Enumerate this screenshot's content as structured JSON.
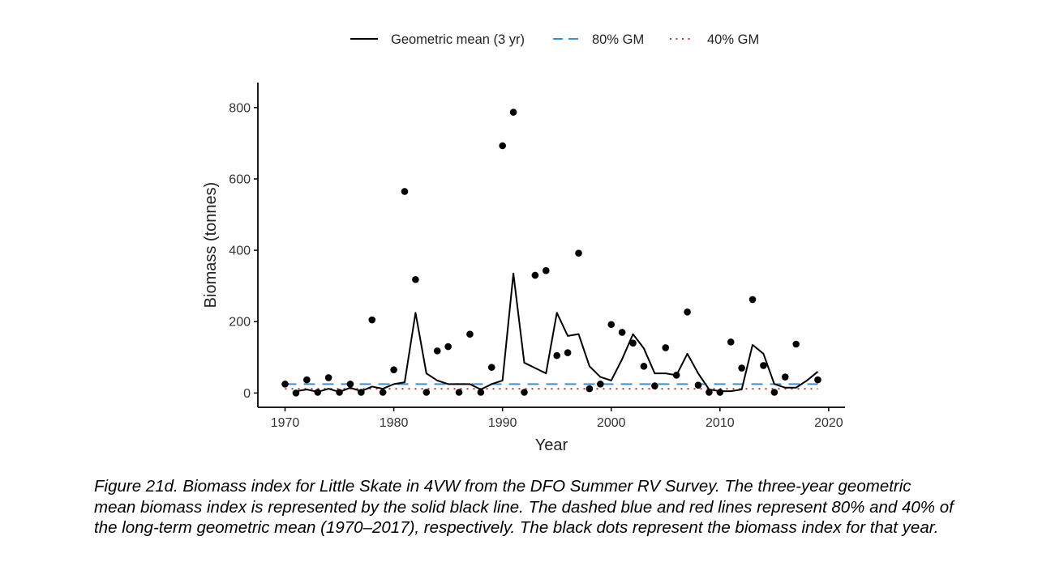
{
  "chart_data": {
    "type": "line",
    "xlabel": "Year",
    "ylabel": "Biomass (tonnes)",
    "xlim": [
      1967.5,
      2021.5
    ],
    "ylim": [
      -40,
      870
    ],
    "x_ticks": [
      1970,
      1980,
      1990,
      2000,
      2010,
      2020
    ],
    "y_ticks": [
      0,
      200,
      400,
      600,
      800
    ],
    "legend_position": "top",
    "grid": false,
    "legend": [
      {
        "label": "Geometric mean (3 yr)",
        "style": "solid",
        "color": "#000000"
      },
      {
        "label": "80% GM",
        "style": "dashed",
        "color": "#3a8fd6"
      },
      {
        "label": "40% GM",
        "style": "dotted",
        "color": "#c0392b"
      }
    ],
    "series": [
      {
        "name": "Geometric mean (3 yr)",
        "type": "line",
        "color": "#000000",
        "x": [
          1971,
          1972,
          1973,
          1974,
          1975,
          1976,
          1977,
          1978,
          1979,
          1980,
          1981,
          1982,
          1983,
          1984,
          1985,
          1986,
          1987,
          1988,
          1989,
          1990,
          1991,
          1992,
          1993,
          1994,
          1995,
          1996,
          1997,
          1998,
          1999,
          2000,
          2001,
          2002,
          2003,
          2004,
          2005,
          2006,
          2007,
          2008,
          2009,
          2010,
          2011,
          2012,
          2013,
          2014,
          2015,
          2016,
          2017,
          2018,
          2019
        ],
        "y": [
          5,
          10,
          3,
          12,
          3,
          15,
          5,
          18,
          12,
          25,
          30,
          225,
          55,
          35,
          25,
          25,
          25,
          10,
          25,
          35,
          335,
          85,
          70,
          55,
          225,
          160,
          165,
          75,
          45,
          35,
          95,
          165,
          125,
          55,
          55,
          50,
          110,
          55,
          10,
          5,
          5,
          10,
          135,
          110,
          25,
          15,
          15,
          35,
          60
        ]
      },
      {
        "name": "80% GM",
        "type": "hline",
        "color": "#3a8fd6",
        "x": [
          1970,
          2019
        ],
        "y": [
          25,
          25
        ]
      },
      {
        "name": "40% GM",
        "type": "hline",
        "color": "#c0392b",
        "x": [
          1970,
          2019
        ],
        "y": [
          12,
          12
        ]
      },
      {
        "name": "",
        "type": "scatter",
        "color": "#000000",
        "x": [
          1970,
          1971,
          1972,
          1973,
          1974,
          1975,
          1976,
          1977,
          1978,
          1979,
          1980,
          1981,
          1982,
          1983,
          1984,
          1985,
          1986,
          1987,
          1988,
          1989,
          1990,
          1991,
          1992,
          1993,
          1994,
          1995,
          1996,
          1997,
          1998,
          1999,
          2000,
          2001,
          2002,
          2003,
          2004,
          2005,
          2006,
          2007,
          2008,
          2009,
          2010,
          2011,
          2012,
          2013,
          2014,
          2015,
          2016,
          2017,
          2019
        ],
        "y": [
          25,
          0,
          37,
          2,
          43,
          2,
          25,
          2,
          205,
          2,
          65,
          565,
          318,
          2,
          118,
          130,
          2,
          165,
          2,
          72,
          693,
          787,
          2,
          330,
          343,
          105,
          113,
          392,
          12,
          25,
          192,
          170,
          140,
          75,
          20,
          127,
          50,
          227,
          22,
          2,
          2,
          143,
          70,
          262,
          77,
          2,
          45,
          137,
          37
        ]
      }
    ]
  },
  "caption": "Figure 21d. Biomass index for Little Skate in 4VW from the DFO Summer RV Survey. The three-year geometric mean biomass index is represented by the solid black line. The dashed blue and red lines represent 80% and 40% of the long-term geometric mean (1970–2017), respectively. The black dots represent the biomass index for that year."
}
